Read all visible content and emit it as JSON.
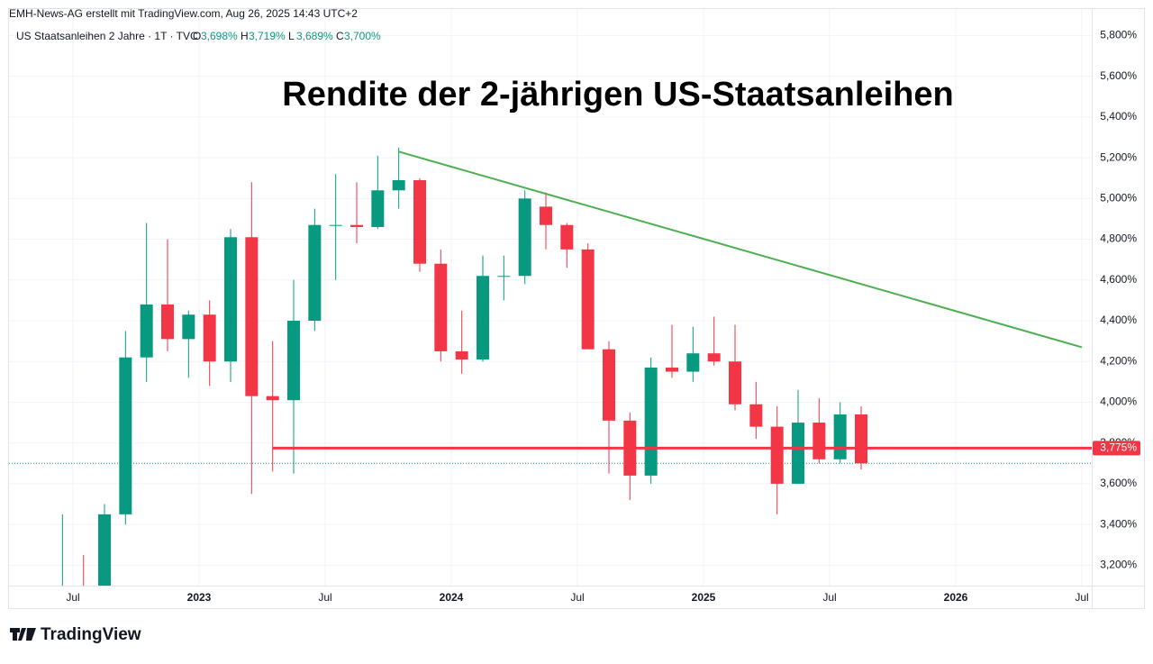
{
  "chart_data": {
    "type": "candlestick",
    "header": "EMH-News-AG erstellt mit TradingView.com, Aug 26, 2025 14:43 UTC+2",
    "symbol": "US Staatsanleihen 2 Jahre · 1T · TVC",
    "ohlc_legend": [
      {
        "key": "O",
        "text": "3,698%"
      },
      {
        "key": "H",
        "text": "3,719%"
      },
      {
        "key": "L",
        "text": "3,689%"
      },
      {
        "key": "C",
        "text": "3,700%"
      }
    ],
    "title": "Rendite der 2-jährigen US-Staatsanleihen",
    "brand": "TradingView",
    "up_color": "#089981",
    "down_color": "#f23645",
    "x": [
      "2022-06",
      "2022-07",
      "2022-08",
      "2022-09",
      "2022-10",
      "2022-11",
      "2022-12",
      "2023-01",
      "2023-02",
      "2023-03",
      "2023-04",
      "2023-05",
      "2023-06",
      "2023-07",
      "2023-08",
      "2023-09",
      "2023-10",
      "2023-11",
      "2023-12",
      "2024-01",
      "2024-02",
      "2024-03",
      "2024-04",
      "2024-05",
      "2024-06",
      "2024-07",
      "2024-08",
      "2024-09",
      "2024-10",
      "2024-11",
      "2024-12",
      "2025-01",
      "2025-02",
      "2025-03",
      "2025-04",
      "2025-05",
      "2025-06",
      "2025-07",
      "2025-08"
    ],
    "open": [
      2.95,
      2.95,
      2.89,
      3.45,
      4.22,
      4.48,
      4.31,
      4.43,
      4.2,
      4.81,
      4.03,
      4.01,
      4.4,
      4.87,
      4.87,
      4.86,
      5.04,
      5.09,
      4.68,
      4.25,
      4.21,
      4.62,
      4.62,
      4.96,
      4.87,
      4.75,
      4.26,
      3.91,
      3.64,
      4.17,
      4.15,
      4.24,
      4.2,
      3.99,
      3.88,
      3.6,
      3.9,
      3.72,
      3.94
    ],
    "high": [
      3.45,
      3.25,
      3.5,
      4.35,
      4.88,
      4.8,
      4.45,
      4.5,
      4.85,
      5.08,
      4.3,
      4.6,
      4.95,
      5.12,
      5.08,
      5.21,
      5.25,
      5.1,
      4.75,
      4.45,
      4.72,
      4.72,
      5.04,
      5.03,
      4.88,
      4.78,
      4.3,
      3.95,
      4.22,
      4.38,
      4.37,
      4.42,
      4.38,
      4.1,
      3.98,
      4.06,
      4.02,
      4.0,
      3.98
    ],
    "low": [
      2.85,
      2.85,
      2.85,
      3.4,
      4.1,
      4.25,
      4.12,
      4.08,
      4.1,
      3.55,
      3.66,
      3.65,
      4.35,
      4.6,
      4.78,
      4.85,
      4.95,
      4.64,
      4.2,
      4.14,
      4.2,
      4.5,
      4.58,
      4.75,
      4.66,
      4.26,
      3.65,
      3.52,
      3.6,
      4.12,
      4.1,
      4.18,
      3.96,
      3.82,
      3.45,
      3.6,
      3.7,
      3.7,
      3.67
    ],
    "close": [
      2.95,
      2.89,
      3.45,
      4.22,
      4.48,
      4.31,
      4.43,
      4.2,
      4.81,
      4.03,
      4.01,
      4.4,
      4.87,
      4.87,
      4.86,
      5.04,
      5.09,
      4.68,
      4.25,
      4.21,
      4.62,
      4.62,
      5.0,
      4.87,
      4.75,
      4.26,
      3.91,
      3.64,
      4.17,
      4.15,
      4.24,
      4.2,
      3.99,
      3.88,
      3.6,
      3.9,
      3.72,
      3.94,
      3.7
    ],
    "xlim": [
      "2022-04",
      "2026-07"
    ],
    "xticks": [
      {
        "value": "2022-07",
        "label": "Jul"
      },
      {
        "value": "2023-01",
        "label": "2023"
      },
      {
        "value": "2023-07",
        "label": "Jul"
      },
      {
        "value": "2024-01",
        "label": "2024"
      },
      {
        "value": "2024-07",
        "label": "Jul"
      },
      {
        "value": "2025-01",
        "label": "2025"
      },
      {
        "value": "2025-07",
        "label": "Jul"
      },
      {
        "value": "2026-01",
        "label": "2026"
      },
      {
        "value": "2026-07",
        "label": "Jul"
      }
    ],
    "ylim": [
      3.1,
      5.93
    ],
    "yticks": [
      {
        "value": 3.2,
        "label": "3,200%"
      },
      {
        "value": 3.4,
        "label": "3,400%"
      },
      {
        "value": 3.6,
        "label": "3,600%"
      },
      {
        "value": 3.8,
        "label": "3,800%"
      },
      {
        "value": 4.0,
        "label": "4,000%"
      },
      {
        "value": 4.2,
        "label": "4,200%"
      },
      {
        "value": 4.4,
        "label": "4,400%"
      },
      {
        "value": 4.6,
        "label": "4,600%"
      },
      {
        "value": 4.8,
        "label": "4,800%"
      },
      {
        "value": 5.0,
        "label": "5,000%"
      },
      {
        "value": 5.2,
        "label": "5,200%"
      },
      {
        "value": 5.4,
        "label": "5,400%"
      },
      {
        "value": 5.6,
        "label": "5,600%"
      },
      {
        "value": 5.8,
        "label": "5,800%"
      }
    ],
    "grid": true,
    "last_price": 3.7,
    "support_line": {
      "value": 3.775,
      "label": "3,775%",
      "start": "2023-04",
      "color": "#f23645"
    },
    "trend_line": {
      "start": {
        "x": "2023-10",
        "y": 5.23
      },
      "end": {
        "x": "2026-07",
        "y": 4.27
      },
      "color": "#4caf50"
    }
  }
}
